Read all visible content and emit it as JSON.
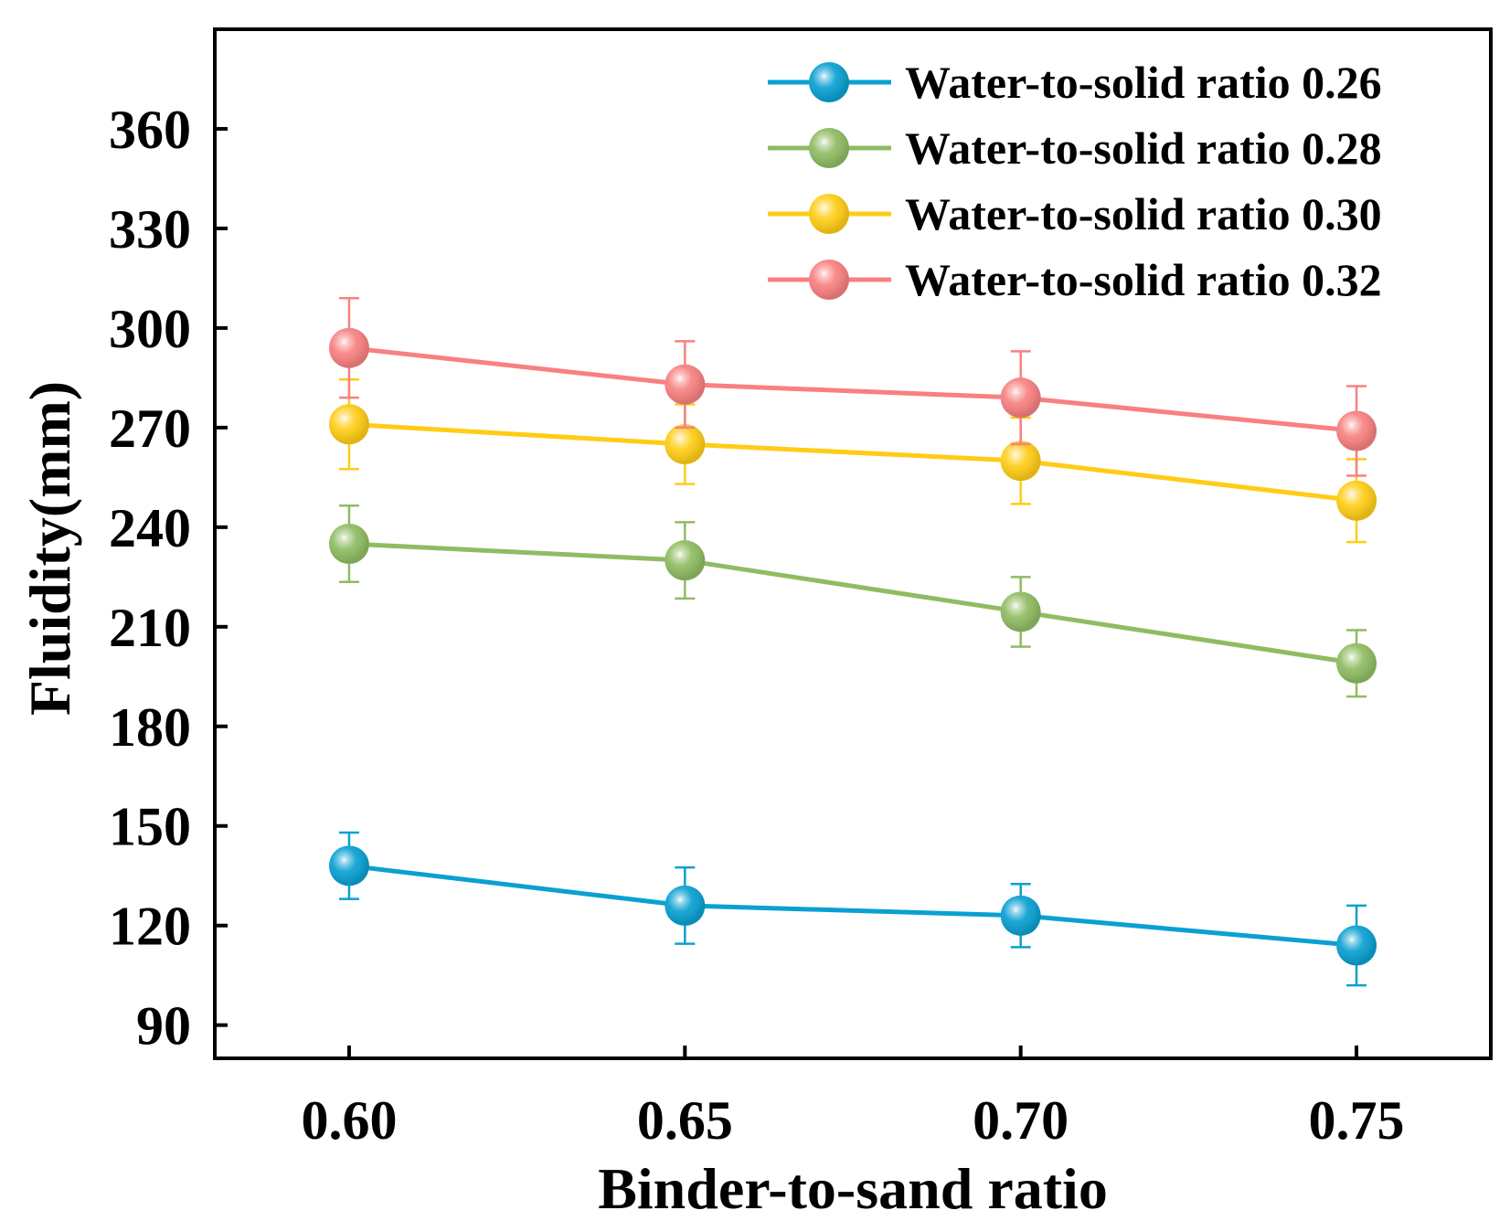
{
  "chart_data": {
    "type": "line",
    "title": "",
    "xlabel": "Binder-to-sand ratio",
    "ylabel": "Fluidity(mm)",
    "categories": [
      "0.60",
      "0.65",
      "0.70",
      "0.75"
    ],
    "x": [
      0.6,
      0.65,
      0.7,
      0.75
    ],
    "xlim": [
      0.58,
      0.77
    ],
    "ylim": [
      80,
      390
    ],
    "yticks": [
      90,
      120,
      150,
      180,
      210,
      240,
      270,
      300,
      330,
      360
    ],
    "ytick_labels": [
      "90",
      "120",
      "150",
      "180",
      "210",
      "240",
      "270",
      "300",
      "330",
      "360"
    ],
    "grid": false,
    "legend_position": "top-right",
    "series": [
      {
        "name": "Water-to-solid ratio 0.26",
        "color": "#0aa0d2",
        "values": [
          138,
          126,
          123,
          114
        ],
        "errors": [
          10,
          11.5,
          9.5,
          12
        ]
      },
      {
        "name": "Water-to-solid ratio 0.28",
        "color": "#8fbc62",
        "values": [
          235,
          230,
          214.5,
          199
        ],
        "errors": [
          11.5,
          11.5,
          10.5,
          10
        ]
      },
      {
        "name": "Water-to-solid ratio 0.30",
        "color": "#ffcc16",
        "values": [
          271,
          265,
          260,
          248
        ],
        "errors": [
          13.5,
          12,
          13,
          12.5
        ]
      },
      {
        "name": "Water-to-solid ratio 0.32",
        "color": "#f88080",
        "values": [
          294,
          283,
          279,
          269
        ],
        "errors": [
          15,
          13,
          14,
          13.5
        ]
      }
    ]
  }
}
